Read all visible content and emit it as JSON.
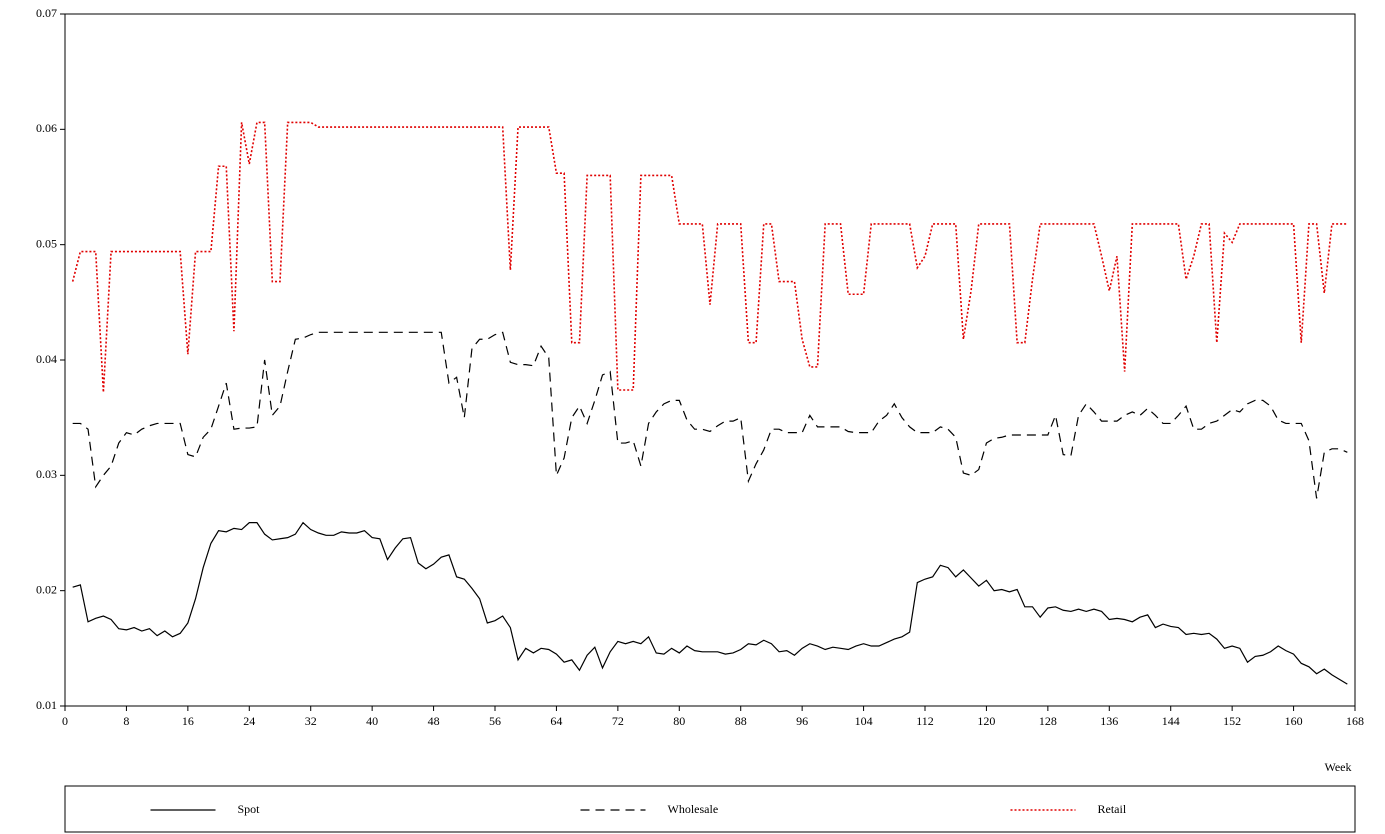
{
  "chart_data": {
    "type": "line",
    "xlabel": "Week",
    "xlim": [
      0,
      168
    ],
    "xticks": [
      0,
      8,
      16,
      24,
      32,
      40,
      48,
      56,
      64,
      72,
      80,
      88,
      96,
      104,
      112,
      120,
      128,
      136,
      144,
      152,
      160,
      168
    ],
    "ylim": [
      0.01,
      0.07
    ],
    "yticks": [
      0.01,
      0.02,
      0.03,
      0.04,
      0.05,
      0.06,
      0.07
    ],
    "legend": "bottom",
    "x": [
      1,
      2,
      3,
      4,
      5,
      6,
      7,
      8,
      9,
      10,
      11,
      12,
      13,
      14,
      15,
      16,
      17,
      18,
      19,
      20,
      21,
      22,
      23,
      24,
      25,
      26,
      27,
      28,
      29,
      30,
      31,
      32,
      33,
      34,
      35,
      36,
      37,
      38,
      39,
      40,
      41,
      42,
      43,
      44,
      45,
      46,
      47,
      48,
      49,
      50,
      51,
      52,
      53,
      54,
      55,
      56,
      57,
      58,
      59,
      60,
      61,
      62,
      63,
      64,
      65,
      66,
      67,
      68,
      69,
      70,
      71,
      72,
      73,
      74,
      75,
      76,
      77,
      78,
      79,
      80,
      81,
      82,
      83,
      84,
      85,
      86,
      87,
      88,
      89,
      90,
      91,
      92,
      93,
      94,
      95,
      96,
      97,
      98,
      99,
      100,
      101,
      102,
      103,
      104,
      105,
      106,
      107,
      108,
      109,
      110,
      111,
      112,
      113,
      114,
      115,
      116,
      117,
      118,
      119,
      120,
      121,
      122,
      123,
      124,
      125,
      126,
      127,
      128,
      129,
      130,
      131,
      132,
      133,
      134,
      135,
      136,
      137,
      138,
      139,
      140,
      141,
      142,
      143,
      144,
      145,
      146,
      147,
      148,
      149,
      150,
      151,
      152,
      153,
      154,
      155,
      156,
      157,
      158,
      159,
      160,
      161,
      162,
      163,
      164,
      165,
      166,
      167
    ],
    "series": [
      {
        "name": "Spot",
        "color": "#000000",
        "style": "solid",
        "values": [
          0.0203,
          0.0205,
          0.0173,
          0.0176,
          0.0178,
          0.0175,
          0.0167,
          0.0166,
          0.0168,
          0.0165,
          0.0167,
          0.0161,
          0.0165,
          0.016,
          0.0163,
          0.0172,
          0.0193,
          0.022,
          0.0241,
          0.0252,
          0.0251,
          0.0254,
          0.0253,
          0.0259,
          0.0259,
          0.0249,
          0.0244,
          0.0245,
          0.0246,
          0.0249,
          0.0259,
          0.0253,
          0.025,
          0.0248,
          0.0248,
          0.0251,
          0.025,
          0.025,
          0.0252,
          0.0246,
          0.0245,
          0.0227,
          0.0237,
          0.0245,
          0.0246,
          0.0224,
          0.0219,
          0.0223,
          0.0229,
          0.0231,
          0.0212,
          0.021,
          0.0202,
          0.0193,
          0.0172,
          0.0174,
          0.0178,
          0.0168,
          0.014,
          0.015,
          0.0146,
          0.015,
          0.0149,
          0.0145,
          0.0138,
          0.014,
          0.0131,
          0.0144,
          0.0151,
          0.0133,
          0.0147,
          0.0156,
          0.0154,
          0.0156,
          0.0154,
          0.016,
          0.0146,
          0.0145,
          0.015,
          0.0146,
          0.0152,
          0.0148,
          0.0147,
          0.0147,
          0.0147,
          0.0145,
          0.0146,
          0.0149,
          0.0154,
          0.0153,
          0.0157,
          0.0154,
          0.0147,
          0.0148,
          0.0144,
          0.015,
          0.0154,
          0.0152,
          0.0149,
          0.0151,
          0.015,
          0.0149,
          0.0152,
          0.0154,
          0.0152,
          0.0152,
          0.0155,
          0.0158,
          0.016,
          0.0164,
          0.0207,
          0.021,
          0.0212,
          0.0222,
          0.022,
          0.0212,
          0.0218,
          0.0211,
          0.0204,
          0.0209,
          0.02,
          0.0201,
          0.0199,
          0.0201,
          0.0186,
          0.0186,
          0.0177,
          0.0185,
          0.0186,
          0.0183,
          0.0182,
          0.0184,
          0.0182,
          0.0184,
          0.0182,
          0.0175,
          0.0176,
          0.0175,
          0.0173,
          0.0177,
          0.0179,
          0.0168,
          0.0171,
          0.0169,
          0.0168,
          0.0162,
          0.0163,
          0.0162,
          0.0163,
          0.0158,
          0.015,
          0.0152,
          0.015,
          0.0138,
          0.0143,
          0.0144,
          0.0147,
          0.0152,
          0.0148,
          0.0145,
          0.0137,
          0.0134,
          0.0128,
          0.0132,
          0.0127,
          0.0123,
          0.0119
        ]
      },
      {
        "name": "Wholesale",
        "color": "#000000",
        "style": "dashed",
        "values": [
          0.0345,
          0.0345,
          0.034,
          0.029,
          0.03,
          0.0308,
          0.0328,
          0.0337,
          0.0335,
          0.034,
          0.0343,
          0.0345,
          0.0345,
          0.0345,
          0.0345,
          0.0318,
          0.0316,
          0.0333,
          0.034,
          0.036,
          0.038,
          0.034,
          0.0341,
          0.0341,
          0.0342,
          0.04,
          0.0352,
          0.036,
          0.039,
          0.0418,
          0.0419,
          0.0422,
          0.0424,
          0.0424,
          0.0424,
          0.0424,
          0.0424,
          0.0424,
          0.0424,
          0.0424,
          0.0424,
          0.0424,
          0.0424,
          0.0424,
          0.0424,
          0.0424,
          0.0424,
          0.0424,
          0.0424,
          0.038,
          0.0385,
          0.035,
          0.041,
          0.0418,
          0.0418,
          0.0422,
          0.0424,
          0.0398,
          0.0396,
          0.0396,
          0.0395,
          0.0412,
          0.0402,
          0.03,
          0.0315,
          0.035,
          0.036,
          0.0345,
          0.0365,
          0.0387,
          0.039,
          0.0328,
          0.0328,
          0.033,
          0.0308,
          0.0345,
          0.0355,
          0.0362,
          0.0365,
          0.0365,
          0.0348,
          0.034,
          0.034,
          0.0338,
          0.0343,
          0.0347,
          0.0347,
          0.035,
          0.0295,
          0.031,
          0.0322,
          0.034,
          0.034,
          0.0337,
          0.0337,
          0.0337,
          0.0352,
          0.0342,
          0.0342,
          0.0342,
          0.0342,
          0.0338,
          0.0337,
          0.0337,
          0.0337,
          0.0347,
          0.0352,
          0.0362,
          0.035,
          0.0342,
          0.0337,
          0.0337,
          0.0337,
          0.0342,
          0.034,
          0.0333,
          0.0302,
          0.03,
          0.0305,
          0.0328,
          0.0332,
          0.0333,
          0.0335,
          0.0335,
          0.0335,
          0.0335,
          0.0335,
          0.0335,
          0.0352,
          0.0318,
          0.0317,
          0.0352,
          0.0362,
          0.0355,
          0.0347,
          0.0347,
          0.0347,
          0.0352,
          0.0355,
          0.0352,
          0.0358,
          0.0352,
          0.0345,
          0.0345,
          0.0352,
          0.036,
          0.034,
          0.034,
          0.0345,
          0.0347,
          0.0352,
          0.0357,
          0.0355,
          0.0362,
          0.0365,
          0.0365,
          0.036,
          0.0348,
          0.0345,
          0.0345,
          0.0345,
          0.033,
          0.028,
          0.032,
          0.0323,
          0.0323,
          0.032
        ]
      },
      {
        "name": "Retail",
        "color": "#e00000",
        "style": "dotted",
        "values": [
          0.0468,
          0.0494,
          0.0494,
          0.0494,
          0.0372,
          0.0494,
          0.0494,
          0.0494,
          0.0494,
          0.0494,
          0.0494,
          0.0494,
          0.0494,
          0.0494,
          0.0494,
          0.0405,
          0.0494,
          0.0494,
          0.0494,
          0.0568,
          0.0568,
          0.0425,
          0.0606,
          0.057,
          0.0606,
          0.0606,
          0.0468,
          0.0468,
          0.0606,
          0.0606,
          0.0606,
          0.0606,
          0.0602,
          0.0602,
          0.0602,
          0.0602,
          0.0602,
          0.0602,
          0.0602,
          0.0602,
          0.0602,
          0.0602,
          0.0602,
          0.0602,
          0.0602,
          0.0602,
          0.0602,
          0.0602,
          0.0602,
          0.0602,
          0.0602,
          0.0602,
          0.0602,
          0.0602,
          0.0602,
          0.0602,
          0.0602,
          0.0478,
          0.0602,
          0.0602,
          0.0602,
          0.0602,
          0.0602,
          0.0562,
          0.0562,
          0.0415,
          0.0415,
          0.056,
          0.056,
          0.056,
          0.056,
          0.0374,
          0.0374,
          0.0374,
          0.056,
          0.056,
          0.056,
          0.056,
          0.056,
          0.0518,
          0.0518,
          0.0518,
          0.0518,
          0.0448,
          0.0518,
          0.0518,
          0.0518,
          0.0518,
          0.0415,
          0.0415,
          0.0518,
          0.0518,
          0.0468,
          0.0468,
          0.0468,
          0.0418,
          0.0394,
          0.0394,
          0.0518,
          0.0518,
          0.0518,
          0.0457,
          0.0457,
          0.0457,
          0.0518,
          0.0518,
          0.0518,
          0.0518,
          0.0518,
          0.0518,
          0.048,
          0.049,
          0.0518,
          0.0518,
          0.0518,
          0.0518,
          0.0418,
          0.046,
          0.0518,
          0.0518,
          0.0518,
          0.0518,
          0.0518,
          0.0415,
          0.0415,
          0.047,
          0.0518,
          0.0518,
          0.0518,
          0.0518,
          0.0518,
          0.0518,
          0.0518,
          0.0518,
          0.049,
          0.046,
          0.049,
          0.039,
          0.0518,
          0.0518,
          0.0518,
          0.0518,
          0.0518,
          0.0518,
          0.0518,
          0.047,
          0.049,
          0.0518,
          0.0518,
          0.0415,
          0.051,
          0.0502,
          0.0518,
          0.0518,
          0.0518,
          0.0518,
          0.0518,
          0.0518,
          0.0518,
          0.0518,
          0.0415,
          0.0518,
          0.0518,
          0.0458,
          0.0518,
          0.0518,
          0.0518
        ]
      }
    ]
  }
}
